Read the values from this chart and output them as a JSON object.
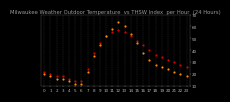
{
  "title": "Milwaukee Weather Outdoor Temperature  vs THSW Index  per Hour  (24 Hours)",
  "bg_color": "#000000",
  "plot_bg_color": "#000000",
  "grid_color": "#555555",
  "temp_color": "#dd0000",
  "thsw_color": "#ff8800",
  "black_dot_color": "#000000",
  "text_color": "#bbbbbb",
  "title_color": "#999999",
  "hours": [
    0,
    1,
    2,
    3,
    4,
    5,
    6,
    7,
    8,
    9,
    10,
    11,
    12,
    13,
    14,
    15,
    16,
    17,
    18,
    19,
    20,
    21,
    22,
    23
  ],
  "temp": [
    22,
    20,
    18,
    18,
    16,
    14,
    14,
    24,
    38,
    46,
    52,
    55,
    57,
    55,
    52,
    48,
    44,
    40,
    36,
    34,
    32,
    30,
    28,
    26
  ],
  "thsw": [
    20,
    18,
    16,
    16,
    14,
    12,
    12,
    22,
    35,
    44,
    52,
    58,
    64,
    60,
    54,
    46,
    38,
    32,
    28,
    26,
    24,
    22,
    20,
    18
  ],
  "ylim": [
    10,
    70
  ],
  "ytick_vals": [
    10,
    20,
    30,
    40,
    50,
    60,
    70
  ],
  "ytick_labels": [
    "10",
    "20",
    "30",
    "40",
    "50",
    "60",
    "70"
  ],
  "xtick_labels": [
    "0",
    "1",
    "2",
    "3",
    "4",
    "5",
    "6",
    "7",
    "8",
    "9",
    "10",
    "11",
    "12",
    "13",
    "14",
    "15",
    "16",
    "17",
    "18",
    "19",
    "20",
    "21",
    "22",
    "23"
  ],
  "title_fontsize": 3.8,
  "tick_fontsize": 3.0,
  "marker_size": 2.5,
  "linewidth": 0.0
}
